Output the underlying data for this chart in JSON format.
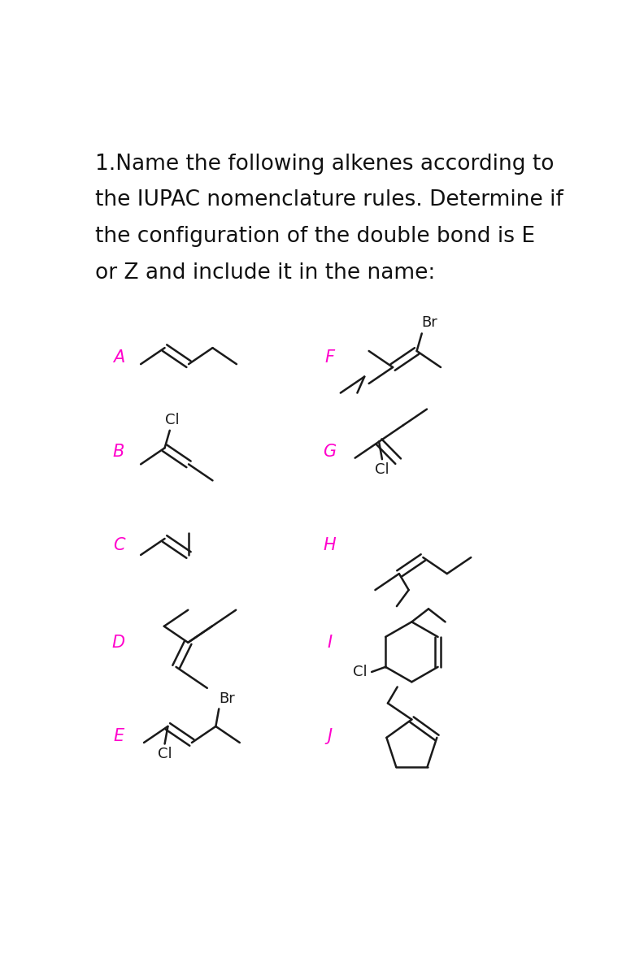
{
  "title_lines": [
    "1.Name the following alkenes according to",
    "the IUPAC nomenclature rules. Determine if",
    "the configuration of the double bond is E",
    "or Z and include it in the name:"
  ],
  "title_fontsize": 19,
  "label_color": "#FF00CC",
  "label_fontsize": 15,
  "bond_color": "#1a1a1a",
  "bond_lw": 1.8,
  "bg_color": "#FFFFFF",
  "annotation_fontsize": 13
}
